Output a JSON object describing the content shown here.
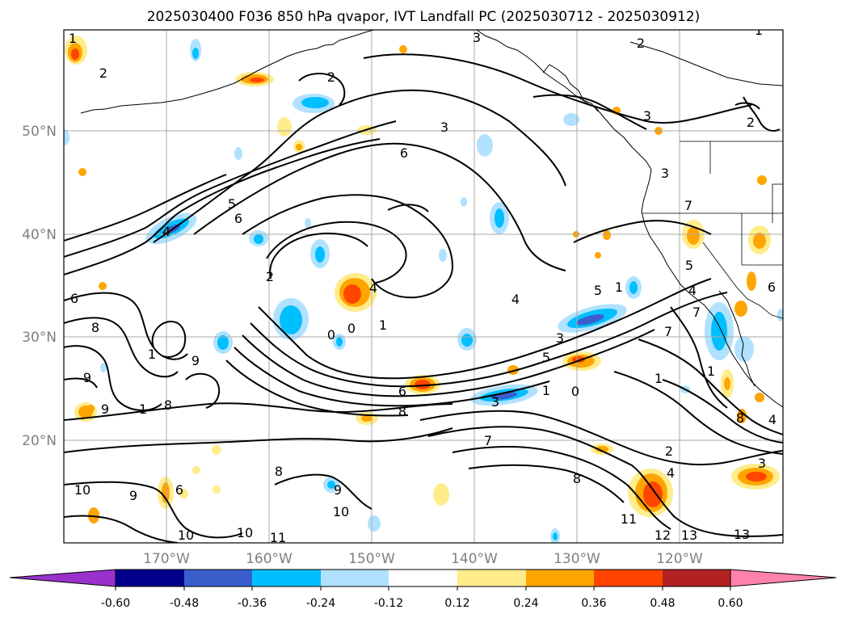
{
  "title": "2025030400 F036 850 hPa qvapor, IVT Landfall PC (2025030712 - 2025030912)",
  "map": {
    "lon_ticks": [
      "170°W",
      "160°W",
      "150°W",
      "140°W",
      "130°W",
      "120°W"
    ],
    "lat_ticks": [
      "50°N",
      "40°N",
      "30°N",
      "20°N"
    ],
    "gridlines": true
  },
  "colorbar": {
    "ticks": [
      "-0.60",
      "-0.48",
      "-0.36",
      "-0.24",
      "-0.12",
      "0.12",
      "0.24",
      "0.36",
      "0.48",
      "0.60"
    ],
    "bins": [
      {
        "lo": -0.72,
        "hi": -0.6,
        "color": "#9932cc"
      },
      {
        "lo": -0.6,
        "hi": -0.48,
        "color": "#00008b"
      },
      {
        "lo": -0.48,
        "hi": -0.36,
        "color": "#3a5fcd"
      },
      {
        "lo": -0.36,
        "hi": -0.24,
        "color": "#00bfff"
      },
      {
        "lo": -0.24,
        "hi": -0.12,
        "color": "#b0e2ff"
      },
      {
        "lo": -0.12,
        "hi": 0.12,
        "color": "#ffffff"
      },
      {
        "lo": 0.12,
        "hi": 0.24,
        "color": "#ffec8b"
      },
      {
        "lo": 0.24,
        "hi": 0.36,
        "color": "#ffa500"
      },
      {
        "lo": 0.36,
        "hi": 0.48,
        "color": "#ff4500"
      },
      {
        "lo": 0.48,
        "hi": 0.6,
        "color": "#b22222"
      },
      {
        "lo": 0.6,
        "hi": 0.72,
        "color": "#ff82ab"
      }
    ],
    "under_color": "#9932cc",
    "over_color": "#ff82ab"
  },
  "contour_labels": [
    "1",
    "2",
    "3",
    "6",
    "3",
    "2",
    "5",
    "6",
    "4",
    "2",
    "8",
    "9",
    "1",
    "8",
    "9",
    "1",
    "0",
    "0",
    "1",
    "4",
    "4",
    "6",
    "8",
    "3",
    "1",
    "3",
    "5",
    "7",
    "1",
    "4",
    "5",
    "2",
    "4",
    "7",
    "1",
    "8",
    "11",
    "12",
    "13",
    "13",
    "9",
    "10",
    "6",
    "8",
    "10",
    "10",
    "11",
    "10",
    "9",
    "3",
    "0",
    "7",
    "6",
    "1",
    "3",
    "2",
    "5",
    "6",
    "4",
    "8",
    "9",
    "7",
    "3",
    "2",
    "1"
  ]
}
